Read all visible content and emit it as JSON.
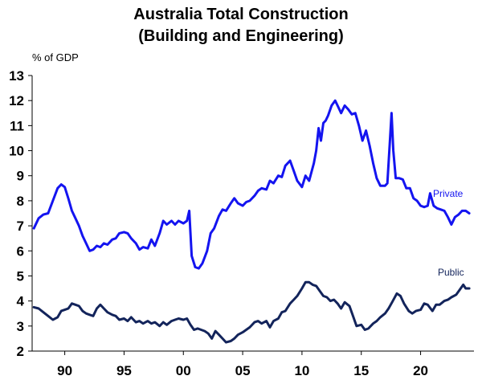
{
  "chart_data": {
    "type": "line",
    "title_lines": [
      "Australia Total Construction",
      "(Building and Engineering)"
    ],
    "ylabel": "% of GDP",
    "ylim": [
      2,
      13
    ],
    "yticks": [
      "2",
      "3",
      "4",
      "5",
      "6",
      "7",
      "8",
      "9",
      "10",
      "11",
      "12",
      "13"
    ],
    "xlim": [
      1987.25,
      2024.5
    ],
    "xticks": [
      {
        "value": 1990,
        "label": "90"
      },
      {
        "value": 1995,
        "label": "95"
      },
      {
        "value": 2000,
        "label": "00"
      },
      {
        "value": 2005,
        "label": "05"
      },
      {
        "value": 2010,
        "label": "10"
      },
      {
        "value": 2015,
        "label": "15"
      },
      {
        "value": 2020,
        "label": "20"
      }
    ],
    "grid": false,
    "series": [
      {
        "name": "Private",
        "color": "#1414f0",
        "points": [
          [
            1987.4,
            6.9
          ],
          [
            1987.8,
            7.3
          ],
          [
            1988.2,
            7.45
          ],
          [
            1988.6,
            7.5
          ],
          [
            1989.0,
            8.0
          ],
          [
            1989.4,
            8.5
          ],
          [
            1989.7,
            8.65
          ],
          [
            1990.0,
            8.55
          ],
          [
            1990.3,
            8.1
          ],
          [
            1990.6,
            7.6
          ],
          [
            1990.9,
            7.3
          ],
          [
            1991.2,
            7.0
          ],
          [
            1991.5,
            6.6
          ],
          [
            1991.8,
            6.3
          ],
          [
            1992.1,
            6.0
          ],
          [
            1992.4,
            6.05
          ],
          [
            1992.7,
            6.2
          ],
          [
            1993.0,
            6.15
          ],
          [
            1993.3,
            6.3
          ],
          [
            1993.6,
            6.25
          ],
          [
            1994.0,
            6.45
          ],
          [
            1994.3,
            6.5
          ],
          [
            1994.6,
            6.7
          ],
          [
            1995.0,
            6.75
          ],
          [
            1995.3,
            6.7
          ],
          [
            1995.6,
            6.5
          ],
          [
            1996.0,
            6.3
          ],
          [
            1996.3,
            6.05
          ],
          [
            1996.6,
            6.15
          ],
          [
            1997.0,
            6.1
          ],
          [
            1997.3,
            6.45
          ],
          [
            1997.6,
            6.2
          ],
          [
            1998.0,
            6.7
          ],
          [
            1998.3,
            7.2
          ],
          [
            1998.6,
            7.05
          ],
          [
            1999.0,
            7.2
          ],
          [
            1999.3,
            7.05
          ],
          [
            1999.6,
            7.2
          ],
          [
            2000.0,
            7.1
          ],
          [
            2000.3,
            7.2
          ],
          [
            2000.5,
            7.6
          ],
          [
            2000.7,
            5.8
          ],
          [
            2001.0,
            5.35
          ],
          [
            2001.3,
            5.3
          ],
          [
            2001.6,
            5.5
          ],
          [
            2002.0,
            6.0
          ],
          [
            2002.3,
            6.7
          ],
          [
            2002.6,
            6.9
          ],
          [
            2003.0,
            7.4
          ],
          [
            2003.3,
            7.65
          ],
          [
            2003.6,
            7.6
          ],
          [
            2004.0,
            7.9
          ],
          [
            2004.3,
            8.1
          ],
          [
            2004.6,
            7.9
          ],
          [
            2005.0,
            7.8
          ],
          [
            2005.3,
            7.95
          ],
          [
            2005.6,
            8.0
          ],
          [
            2006.0,
            8.2
          ],
          [
            2006.3,
            8.4
          ],
          [
            2006.6,
            8.5
          ],
          [
            2007.0,
            8.45
          ],
          [
            2007.3,
            8.8
          ],
          [
            2007.6,
            8.7
          ],
          [
            2008.0,
            9.0
          ],
          [
            2008.3,
            8.95
          ],
          [
            2008.6,
            9.4
          ],
          [
            2009.0,
            9.6
          ],
          [
            2009.3,
            9.2
          ],
          [
            2009.6,
            8.8
          ],
          [
            2010.0,
            8.55
          ],
          [
            2010.3,
            9.0
          ],
          [
            2010.6,
            8.8
          ],
          [
            2011.0,
            9.5
          ],
          [
            2011.2,
            10.0
          ],
          [
            2011.4,
            10.9
          ],
          [
            2011.6,
            10.4
          ],
          [
            2011.8,
            11.1
          ],
          [
            2012.0,
            11.2
          ],
          [
            2012.2,
            11.4
          ],
          [
            2012.5,
            11.8
          ],
          [
            2012.8,
            12.0
          ],
          [
            2013.0,
            11.8
          ],
          [
            2013.3,
            11.5
          ],
          [
            2013.6,
            11.8
          ],
          [
            2013.9,
            11.65
          ],
          [
            2014.2,
            11.45
          ],
          [
            2014.5,
            11.5
          ],
          [
            2014.8,
            11.0
          ],
          [
            2015.1,
            10.4
          ],
          [
            2015.4,
            10.8
          ],
          [
            2015.7,
            10.2
          ],
          [
            2016.0,
            9.5
          ],
          [
            2016.3,
            8.9
          ],
          [
            2016.6,
            8.6
          ],
          [
            2017.0,
            8.6
          ],
          [
            2017.2,
            8.7
          ],
          [
            2017.4,
            10.3
          ],
          [
            2017.55,
            11.5
          ],
          [
            2017.7,
            10.0
          ],
          [
            2017.9,
            8.9
          ],
          [
            2018.2,
            8.9
          ],
          [
            2018.5,
            8.85
          ],
          [
            2018.8,
            8.5
          ],
          [
            2019.1,
            8.5
          ],
          [
            2019.4,
            8.1
          ],
          [
            2019.7,
            8.0
          ],
          [
            2020.0,
            7.8
          ],
          [
            2020.3,
            7.75
          ],
          [
            2020.6,
            7.8
          ],
          [
            2020.8,
            8.3
          ],
          [
            2021.1,
            7.8
          ],
          [
            2021.4,
            7.7
          ],
          [
            2021.7,
            7.65
          ],
          [
            2022.0,
            7.6
          ],
          [
            2022.3,
            7.35
          ],
          [
            2022.6,
            7.05
          ],
          [
            2022.9,
            7.35
          ],
          [
            2023.2,
            7.45
          ],
          [
            2023.5,
            7.6
          ],
          [
            2023.8,
            7.6
          ],
          [
            2024.1,
            7.5
          ]
        ]
      },
      {
        "name": "Public",
        "color": "#13245b",
        "points": [
          [
            1987.4,
            3.75
          ],
          [
            1987.8,
            3.7
          ],
          [
            1988.2,
            3.55
          ],
          [
            1988.6,
            3.4
          ],
          [
            1989.0,
            3.25
          ],
          [
            1989.4,
            3.35
          ],
          [
            1989.7,
            3.6
          ],
          [
            1990.0,
            3.65
          ],
          [
            1990.3,
            3.7
          ],
          [
            1990.6,
            3.9
          ],
          [
            1990.9,
            3.85
          ],
          [
            1991.2,
            3.8
          ],
          [
            1991.5,
            3.6
          ],
          [
            1991.8,
            3.5
          ],
          [
            1992.1,
            3.45
          ],
          [
            1992.4,
            3.4
          ],
          [
            1992.7,
            3.7
          ],
          [
            1993.0,
            3.85
          ],
          [
            1993.3,
            3.7
          ],
          [
            1993.6,
            3.55
          ],
          [
            1994.0,
            3.45
          ],
          [
            1994.3,
            3.4
          ],
          [
            1994.6,
            3.25
          ],
          [
            1995.0,
            3.3
          ],
          [
            1995.3,
            3.2
          ],
          [
            1995.6,
            3.35
          ],
          [
            1996.0,
            3.15
          ],
          [
            1996.3,
            3.2
          ],
          [
            1996.6,
            3.1
          ],
          [
            1997.0,
            3.2
          ],
          [
            1997.3,
            3.1
          ],
          [
            1997.6,
            3.15
          ],
          [
            1998.0,
            3.0
          ],
          [
            1998.3,
            3.15
          ],
          [
            1998.6,
            3.05
          ],
          [
            1999.0,
            3.2
          ],
          [
            1999.3,
            3.25
          ],
          [
            1999.6,
            3.3
          ],
          [
            2000.0,
            3.25
          ],
          [
            2000.3,
            3.3
          ],
          [
            2000.6,
            3.05
          ],
          [
            2000.9,
            2.85
          ],
          [
            2001.2,
            2.9
          ],
          [
            2001.5,
            2.85
          ],
          [
            2001.8,
            2.8
          ],
          [
            2002.1,
            2.7
          ],
          [
            2002.4,
            2.5
          ],
          [
            2002.7,
            2.8
          ],
          [
            2003.0,
            2.65
          ],
          [
            2003.3,
            2.5
          ],
          [
            2003.6,
            2.35
          ],
          [
            2004.0,
            2.4
          ],
          [
            2004.3,
            2.5
          ],
          [
            2004.6,
            2.65
          ],
          [
            2005.0,
            2.75
          ],
          [
            2005.3,
            2.85
          ],
          [
            2005.6,
            2.95
          ],
          [
            2006.0,
            3.15
          ],
          [
            2006.3,
            3.2
          ],
          [
            2006.6,
            3.1
          ],
          [
            2007.0,
            3.2
          ],
          [
            2007.3,
            2.95
          ],
          [
            2007.6,
            3.2
          ],
          [
            2008.0,
            3.3
          ],
          [
            2008.3,
            3.55
          ],
          [
            2008.6,
            3.6
          ],
          [
            2009.0,
            3.9
          ],
          [
            2009.3,
            4.05
          ],
          [
            2009.6,
            4.2
          ],
          [
            2010.0,
            4.5
          ],
          [
            2010.3,
            4.75
          ],
          [
            2010.6,
            4.75
          ],
          [
            2010.9,
            4.65
          ],
          [
            2011.2,
            4.6
          ],
          [
            2011.5,
            4.4
          ],
          [
            2011.8,
            4.2
          ],
          [
            2012.1,
            4.15
          ],
          [
            2012.4,
            4.0
          ],
          [
            2012.7,
            4.05
          ],
          [
            2013.0,
            3.9
          ],
          [
            2013.3,
            3.7
          ],
          [
            2013.6,
            3.95
          ],
          [
            2014.0,
            3.8
          ],
          [
            2014.3,
            3.4
          ],
          [
            2014.6,
            3.0
          ],
          [
            2015.0,
            3.05
          ],
          [
            2015.3,
            2.85
          ],
          [
            2015.6,
            2.9
          ],
          [
            2016.0,
            3.1
          ],
          [
            2016.3,
            3.2
          ],
          [
            2016.6,
            3.35
          ],
          [
            2017.0,
            3.5
          ],
          [
            2017.3,
            3.7
          ],
          [
            2017.6,
            3.95
          ],
          [
            2018.0,
            4.3
          ],
          [
            2018.3,
            4.2
          ],
          [
            2018.6,
            3.9
          ],
          [
            2019.0,
            3.6
          ],
          [
            2019.3,
            3.5
          ],
          [
            2019.6,
            3.6
          ],
          [
            2020.0,
            3.65
          ],
          [
            2020.3,
            3.9
          ],
          [
            2020.6,
            3.85
          ],
          [
            2021.0,
            3.6
          ],
          [
            2021.3,
            3.85
          ],
          [
            2021.6,
            3.85
          ],
          [
            2022.0,
            4.0
          ],
          [
            2022.3,
            4.05
          ],
          [
            2022.6,
            4.15
          ],
          [
            2023.0,
            4.25
          ],
          [
            2023.3,
            4.45
          ],
          [
            2023.6,
            4.65
          ],
          [
            2023.8,
            4.5
          ],
          [
            2024.1,
            4.5
          ]
        ]
      }
    ]
  }
}
